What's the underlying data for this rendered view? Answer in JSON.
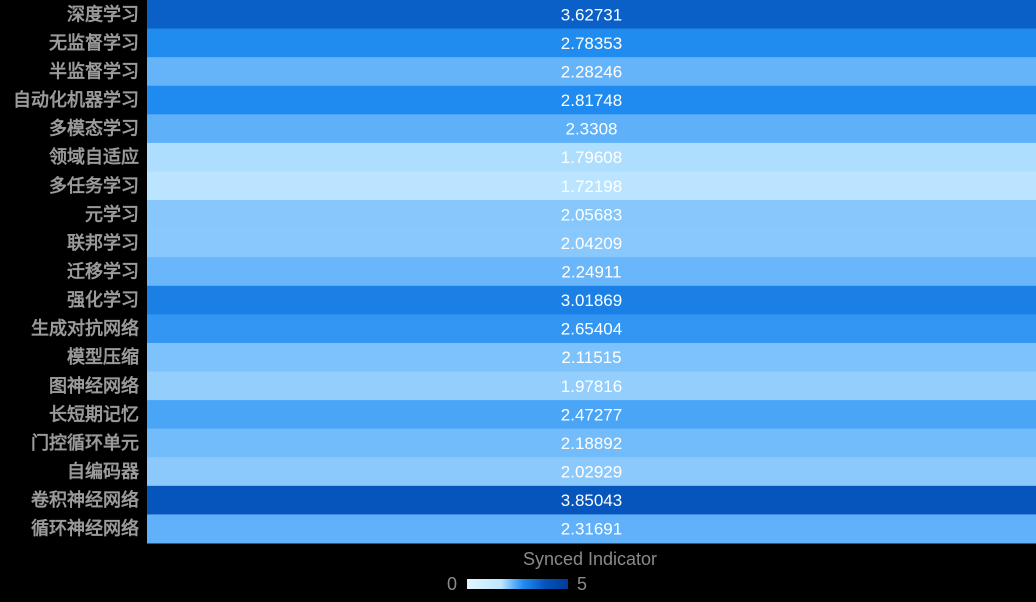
{
  "chart_data": {
    "type": "heatmap",
    "categories": [
      "深度学习",
      "无监督学习",
      "半监督学习",
      "自动化机器学习",
      "多模态学习",
      "领域自适应",
      "多任务学习",
      "元学习",
      "联邦学习",
      "迁移学习",
      "强化学习",
      "生成对抗网络",
      "模型压缩",
      "图神经网络",
      "长短期记忆",
      "门控循环单元",
      "自编码器",
      "卷积神经网络",
      "循环神经网络"
    ],
    "values": [
      "3.62731",
      "2.78353",
      "2.28246",
      "2.81748",
      "2.3308",
      "1.79608",
      "1.72198",
      "2.05683",
      "2.04209",
      "2.24911",
      "3.01869",
      "2.65404",
      "2.11515",
      "1.97816",
      "2.47277",
      "2.18892",
      "2.02929",
      "3.85043",
      "2.31691"
    ],
    "colorbar": {
      "title": "Synced Indicator",
      "min": 0,
      "max": 5,
      "min_label": "0",
      "max_label": "5"
    },
    "colorscale": [
      [
        0,
        "#e2f5ff"
      ],
      [
        1.7,
        "#bde6ff"
      ],
      [
        2.3,
        "#62b2fa"
      ],
      [
        2.8,
        "#1f8bf0"
      ],
      [
        3.9,
        "#0552ba"
      ],
      [
        5,
        "#003c98"
      ]
    ]
  }
}
